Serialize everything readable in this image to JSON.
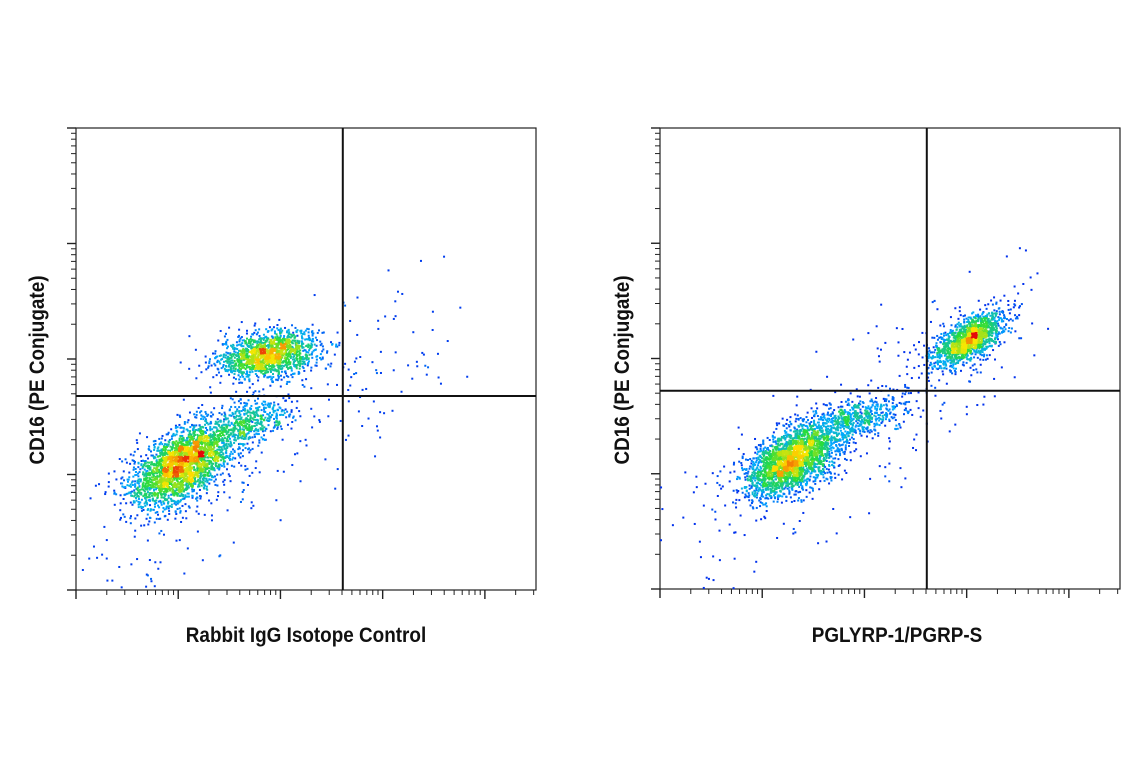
{
  "chart_data": [
    {
      "type": "scatter",
      "subtype": "flow-cytometry-density-plot",
      "xlabel": "Rabbit IgG Isotope Control",
      "ylabel": "CD16 (PE Conjugate)",
      "x_scale": "log",
      "y_scale": "log",
      "tick_labels": "none",
      "quadrant_gate": {
        "x": 0.58,
        "y": 0.42
      },
      "populations": [
        {
          "cx": 0.42,
          "cy": 0.51,
          "sx": 0.055,
          "sy": 0.025,
          "n": 1500,
          "rho": 0.3
        },
        {
          "cx": 0.23,
          "cy": 0.27,
          "sx": 0.055,
          "sy": 0.045,
          "n": 2600,
          "rho": 0.55
        },
        {
          "cx": 0.37,
          "cy": 0.36,
          "sx": 0.05,
          "sy": 0.03,
          "n": 500,
          "rho": 0.6
        }
      ],
      "grid": false,
      "legend": "none"
    },
    {
      "type": "scatter",
      "subtype": "flow-cytometry-density-plot",
      "xlabel": "PGLYRP-1/PGRP-S",
      "ylabel": "CD16 (PE Conjugate)",
      "x_scale": "log",
      "y_scale": "log",
      "tick_labels": "none",
      "quadrant_gate": {
        "x": 0.58,
        "y": 0.43
      },
      "populations": [
        {
          "cx": 0.67,
          "cy": 0.54,
          "sx": 0.04,
          "sy": 0.03,
          "n": 1400,
          "rho": 0.65
        },
        {
          "cx": 0.29,
          "cy": 0.28,
          "sx": 0.05,
          "sy": 0.04,
          "n": 2600,
          "rho": 0.55
        },
        {
          "cx": 0.43,
          "cy": 0.37,
          "sx": 0.05,
          "sy": 0.025,
          "n": 500,
          "rho": 0.5
        }
      ],
      "grid": false,
      "legend": "none"
    }
  ]
}
